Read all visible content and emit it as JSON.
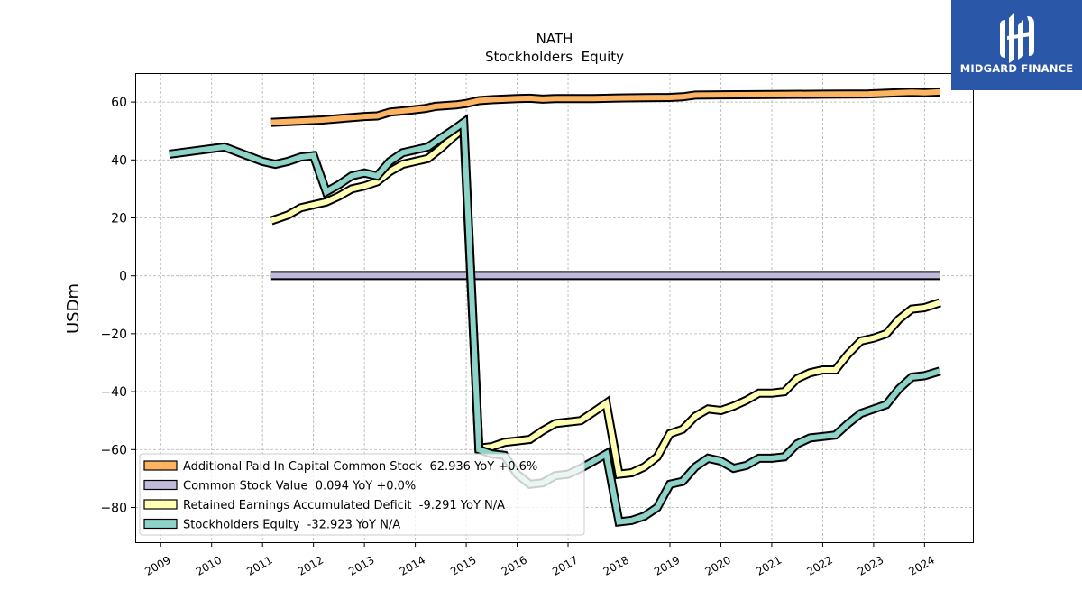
{
  "chart_data": {
    "type": "line",
    "title": "NATH",
    "subtitle": "Stockholders  Equity",
    "ylabel": "USDm",
    "ylim": [
      -92,
      70
    ],
    "xlim": [
      2008.5,
      2024.95
    ],
    "grid": true,
    "legend_position": "lower-left",
    "x_ticks": [
      2009,
      2010,
      2011,
      2012,
      2013,
      2014,
      2015,
      2016,
      2017,
      2018,
      2019,
      2020,
      2021,
      2022,
      2023,
      2024
    ],
    "x_tick_labels": [
      "2009",
      "2010",
      "2011",
      "2012",
      "2013",
      "2014",
      "2015",
      "2016",
      "2017",
      "2018",
      "2019",
      "2020",
      "2021",
      "2022",
      "2023",
      "2024"
    ],
    "y_ticks": [
      60,
      40,
      20,
      0,
      -20,
      -40,
      -60,
      -80
    ],
    "y_tick_labels": [
      "60",
      "40",
      "20",
      "0",
      "−20",
      "−40",
      "−60",
      "−80"
    ],
    "series": [
      {
        "name": "Additional Paid In Capital Common Stock  62.936 YoY +0.6%",
        "color": "#fdb462",
        "x": [
          2011.17,
          2012.17,
          2013.0,
          2013.25,
          2013.5,
          2013.9,
          2014.2,
          2014.4,
          2014.8,
          2015.0,
          2015.25,
          2015.5,
          2015.75,
          2016.0,
          2016.25,
          2016.5,
          2016.75,
          2017.0,
          2017.5,
          2018.0,
          2018.5,
          2019.0,
          2019.25,
          2019.5,
          2020.0,
          2021.0,
          2022.0,
          2022.9,
          2023.5,
          2023.75,
          2024.0,
          2024.3
        ],
        "y": [
          53.0,
          53.8,
          55.0,
          55.2,
          56.5,
          57.2,
          57.8,
          58.5,
          59.0,
          59.5,
          60.5,
          60.8,
          61.0,
          61.2,
          61.3,
          61.0,
          61.2,
          61.2,
          61.2,
          61.4,
          61.5,
          61.6,
          61.8,
          62.4,
          62.5,
          62.6,
          62.7,
          62.8,
          63.2,
          63.4,
          63.2,
          63.5
        ]
      },
      {
        "name": "Common Stock Value  0.094 YoY +0.0%",
        "color": "#bebada",
        "x": [
          2011.17,
          2024.3
        ],
        "y": [
          0.094,
          0.094
        ]
      },
      {
        "name": "Retained Earnings Accumulated Deficit  -9.291 YoY N/A",
        "color": "#ffffb3",
        "x": [
          2011.17,
          2011.5,
          2011.75,
          2012.0,
          2012.25,
          2012.5,
          2012.75,
          2013.0,
          2013.25,
          2013.5,
          2013.75,
          2014.0,
          2014.25,
          2014.5,
          2014.75,
          2014.95,
          2015.25,
          2015.5,
          2015.75,
          2016.0,
          2016.25,
          2016.5,
          2016.75,
          2017.0,
          2017.25,
          2017.5,
          2017.75,
          2018.0,
          2018.25,
          2018.5,
          2018.75,
          2019.0,
          2019.25,
          2019.5,
          2019.75,
          2020.0,
          2020.25,
          2020.5,
          2020.75,
          2021.0,
          2021.25,
          2021.5,
          2021.75,
          2022.0,
          2022.25,
          2022.5,
          2022.75,
          2023.0,
          2023.25,
          2023.5,
          2023.75,
          2024.0,
          2024.3
        ],
        "y": [
          19.0,
          21.0,
          23.5,
          24.5,
          25.5,
          27.5,
          30.0,
          31.0,
          32.5,
          36.0,
          38.5,
          39.5,
          40.5,
          44.0,
          48.0,
          51.0,
          -59.5,
          -59.0,
          -57.5,
          -57.0,
          -56.5,
          -53.5,
          -51.0,
          -50.5,
          -50.0,
          -47.0,
          -44.0,
          -68.5,
          -68.0,
          -66.0,
          -62.5,
          -54.5,
          -53.0,
          -48.5,
          -46.0,
          -46.5,
          -45.0,
          -43.0,
          -40.5,
          -40.5,
          -40.0,
          -35.5,
          -33.5,
          -32.5,
          -32.5,
          -27.0,
          -22.5,
          -21.5,
          -20.0,
          -15.0,
          -11.5,
          -11.0,
          -9.3
        ]
      },
      {
        "name": "Stockholders Equity  -32.923 YoY N/A",
        "color": "#8dd3c7",
        "x": [
          2009.17,
          2010.25,
          2011.0,
          2011.25,
          2011.5,
          2011.75,
          2012.0,
          2012.25,
          2012.5,
          2012.75,
          2013.0,
          2013.25,
          2013.5,
          2013.75,
          2014.0,
          2014.25,
          2014.5,
          2014.75,
          2014.95,
          2015.25,
          2015.5,
          2015.75,
          2016.0,
          2016.25,
          2016.5,
          2016.75,
          2017.0,
          2017.25,
          2017.5,
          2017.75,
          2018.0,
          2018.25,
          2018.5,
          2018.75,
          2019.0,
          2019.25,
          2019.5,
          2019.75,
          2020.0,
          2020.25,
          2020.5,
          2020.75,
          2021.0,
          2021.25,
          2021.5,
          2021.75,
          2022.0,
          2022.25,
          2022.5,
          2022.75,
          2023.0,
          2023.25,
          2023.5,
          2023.75,
          2024.0,
          2024.3
        ],
        "y": [
          42.0,
          44.5,
          39.5,
          38.5,
          39.5,
          41.0,
          41.5,
          29.0,
          31.5,
          34.5,
          35.5,
          34.5,
          39.5,
          42.5,
          43.5,
          44.5,
          47.5,
          50.5,
          53.0,
          -60.0,
          -61.5,
          -62.0,
          -68.5,
          -72.0,
          -71.5,
          -69.0,
          -68.5,
          -66.5,
          -64.0,
          -61.5,
          -85.0,
          -84.5,
          -83.0,
          -80.0,
          -72.0,
          -71.0,
          -66.0,
          -63.0,
          -64.0,
          -66.5,
          -65.5,
          -63.0,
          -63.0,
          -62.5,
          -58.0,
          -56.0,
          -55.5,
          -55.0,
          -51.0,
          -47.5,
          -46.0,
          -44.5,
          -39.0,
          -35.0,
          -34.5,
          -32.9
        ]
      }
    ]
  },
  "logo": {
    "text": "MIDGARD FINANCE",
    "icon": "midgard-finance-logo-icon",
    "background": "#2b57a8"
  }
}
